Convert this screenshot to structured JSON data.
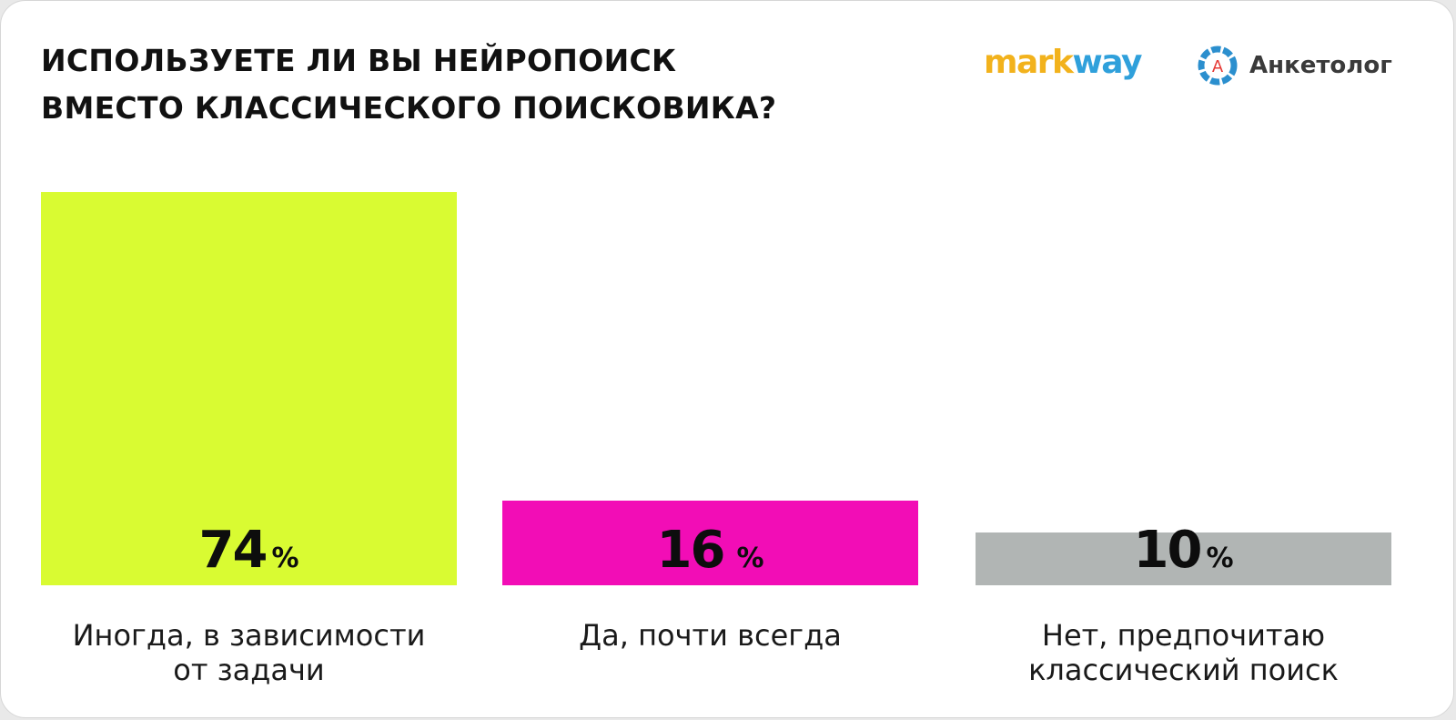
{
  "title_lines": [
    "ИСПОЛЬЗУЕТЕ ЛИ ВЫ НЕЙРОПОИСК",
    "ВМЕСТО КЛАССИЧЕСКОГО ПОИСКОВИКА?"
  ],
  "logos": {
    "markway_part1": "mark",
    "markway_part2": "way",
    "anketolog_letter": "А",
    "anketolog_name": "Анкетолог"
  },
  "colors": {
    "bar_1": "#d9fb32",
    "bar_2": "#f20db6",
    "bar_3": "#b1b5b4",
    "markway_orange": "#f2b21c",
    "markway_blue": "#2fa0db",
    "anketolog_blue": "#2b8fce",
    "anketolog_red": "#e53935"
  },
  "chart_data": {
    "type": "bar",
    "title": "ИСПОЛЬЗУЕТЕ ЛИ ВЫ НЕЙРОПОИСК ВМЕСТО КЛАССИЧЕСКОГО ПОИСКОВИКА?",
    "categories": [
      [
        "Иногда, в зависимости",
        "от задачи"
      ],
      [
        "Да, почти всегда"
      ],
      [
        "Нет, предпочитаю",
        "классический поиск"
      ]
    ],
    "values": [
      74,
      16,
      10
    ],
    "value_labels": [
      "74",
      "16",
      "10"
    ],
    "unit": "%",
    "ylim": [
      0,
      74
    ],
    "grid": false,
    "legend": "none"
  }
}
